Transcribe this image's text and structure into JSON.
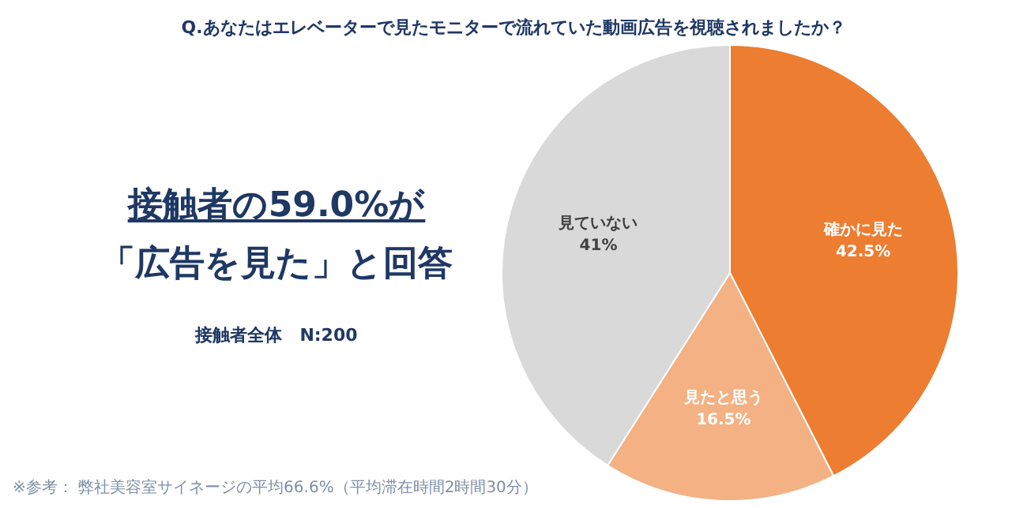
{
  "chart_data": {
    "type": "pie",
    "title": "Q.あなたはエレベーターで見たモニターで流れていた動画広告を視聴されましたか？",
    "categories": [
      "確かに見た",
      "見たと思う",
      "見ていない"
    ],
    "values": [
      42.5,
      16.5,
      41
    ],
    "colors": [
      "#ed7d31",
      "#f4b183",
      "#d9d9d9"
    ],
    "value_labels": [
      "42.5%",
      "16.5%",
      "41%"
    ],
    "annotations": [
      "接触者の59.0%が",
      "「広告を見た」と回答",
      "接触者全体　N:200",
      "※参考： 弊社美容室サイネージの平均66.6%（平均滞在時間2時間30分）"
    ]
  }
}
